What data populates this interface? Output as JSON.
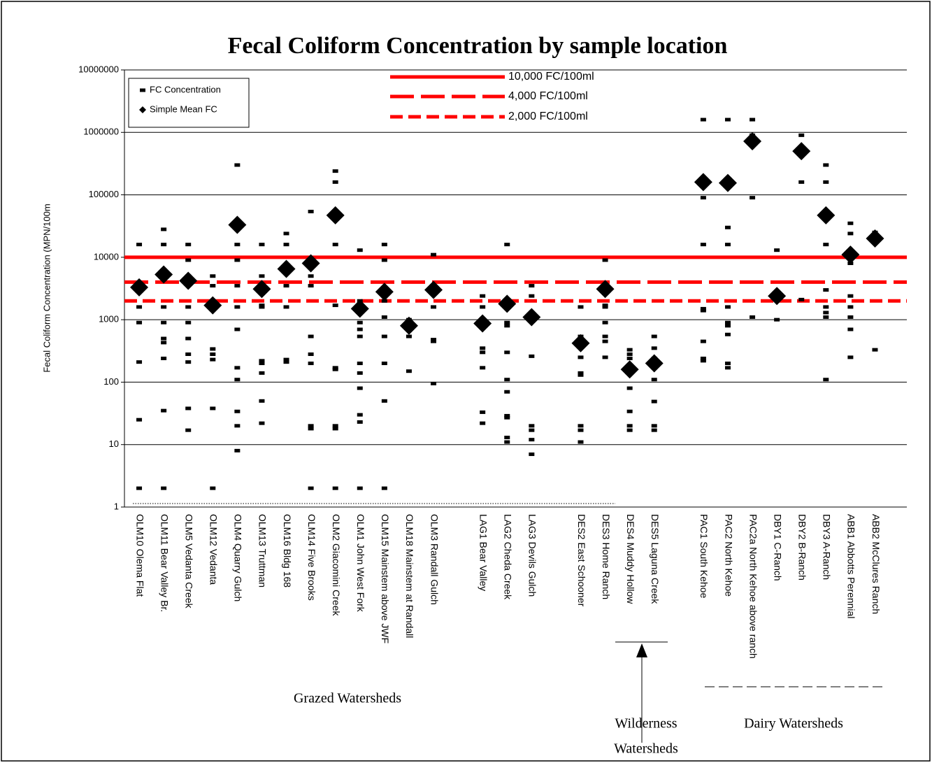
{
  "chart_data": {
    "type": "scatter",
    "title": "Fecal Coliform Concentration by sample location",
    "y_label": "Fecal Coliform Concentration (MPN/100m",
    "log_scale": true,
    "ylim": [
      1,
      10000000
    ],
    "yticks": [
      1,
      10,
      100,
      1000,
      10000,
      100000,
      1000000,
      10000000
    ],
    "grid": true,
    "categories": [
      "OLM10 Olema Flat",
      "OLM11 Bear Valley Br.",
      "OLM5 Vedanta Creek",
      "OLM12 Vedanta",
      "OLM4 Quarry Gulch",
      "OLM13 Truttman",
      "OLM16 Bldg 168",
      "OLM14 Five Brooks",
      "OLM2 Giacomini Creek",
      "OLM1 John West Fork",
      "OLM15 Mainstem above JWF",
      "OLM18 Mainstem at Randall",
      "OLM3 Randall Gulch",
      null,
      "LAG1 Bear Valley",
      "LAG2 Cheda Creek",
      "LAG3 Devils Gulch",
      null,
      "DES2 East Schooner",
      "DES3 Home Ranch",
      "DES4 Muddy Hollow",
      "DES5 Laguna Creek",
      null,
      "PAC1 South Kehoe",
      "PAC2 North Kehoe",
      "PAC2a North Kehoe above ranch",
      "DBY1 C-Ranch",
      "DBY2 B-Ranch",
      "DBY3 A-Ranch",
      "ABB1 Abbotts Perennial",
      "ABB2 McClures Ranch"
    ],
    "series": [
      {
        "name": "FC Concentration",
        "color": "#000000",
        "marker": "dash",
        "values": [
          [
            16000,
            1600,
            900,
            210,
            25,
            2
          ],
          [
            28000,
            16000,
            1600,
            900,
            500,
            430,
            240,
            35,
            2
          ],
          [
            16000,
            9000,
            5000,
            1600,
            900,
            500,
            280,
            210,
            38,
            17
          ],
          [
            5000,
            3500,
            340,
            280,
            230,
            38,
            2
          ],
          [
            300000,
            16000,
            9000,
            3500,
            1600,
            700,
            170,
            110,
            34,
            20,
            8
          ],
          [
            16000,
            5000,
            1700,
            1600,
            220,
            200,
            140,
            50,
            22
          ],
          [
            24000,
            16000,
            3500,
            1600,
            230,
            210
          ],
          [
            54000,
            5000,
            3500,
            540,
            280,
            200,
            20,
            18,
            2
          ],
          [
            240000,
            160000,
            16000,
            1700,
            170,
            160,
            20,
            18,
            2
          ],
          [
            13000,
            2000,
            900,
            700,
            540,
            200,
            140,
            80,
            30,
            23,
            2
          ],
          [
            16000,
            9000,
            2000,
            1100,
            540,
            200,
            50,
            2
          ],
          [
            1000,
            540,
            150
          ],
          [
            11000,
            1600,
            480,
            450,
            95
          ],
          null,
          [
            2400,
            1600,
            350,
            300,
            170,
            33,
            22
          ],
          [
            16000,
            900,
            800,
            300,
            110,
            70,
            29,
            27,
            13,
            11
          ],
          [
            3500,
            2400,
            260,
            20,
            17,
            12,
            7
          ],
          null,
          [
            1600,
            540,
            250,
            140,
            130,
            20,
            17,
            11
          ],
          [
            9000,
            1700,
            1600,
            900,
            540,
            450,
            250
          ],
          [
            330,
            280,
            240,
            80,
            34,
            20,
            17
          ],
          [
            540,
            350,
            240,
            170,
            110,
            49,
            20,
            17
          ],
          null,
          [
            1600000,
            90000,
            16000,
            1500,
            1400,
            450,
            240,
            220
          ],
          [
            1600000,
            30000,
            16000,
            1600,
            900,
            800,
            580,
            200,
            170
          ],
          [
            1600000,
            900000,
            90000,
            1100
          ],
          [
            13000,
            1000
          ],
          [
            900000,
            160000,
            2100
          ],
          [
            300000,
            160000,
            16000,
            3000,
            1600,
            1300,
            1100,
            110
          ],
          [
            35000,
            24000,
            8000,
            2400,
            1600,
            1100,
            700,
            250
          ],
          [
            25000,
            17000,
            330
          ]
        ]
      },
      {
        "name": "Simple Mean FC",
        "color": "#000000",
        "marker": "diamond",
        "values": [
          3300,
          5300,
          4200,
          1700,
          33000,
          3100,
          6500,
          8000,
          47000,
          1500,
          2800,
          800,
          3000,
          null,
          870,
          1800,
          1100,
          null,
          420,
          3100,
          160,
          200,
          null,
          160000,
          155000,
          720000,
          2400,
          500000,
          47000,
          11000,
          20000
        ]
      }
    ],
    "reference_lines": [
      {
        "name": "10,000 FC/100ml",
        "value": 10000,
        "color": "#ff0000",
        "dash": "solid"
      },
      {
        "name": "4,000 FC/100ml",
        "value": 4000,
        "color": "#ff0000",
        "dash": "long"
      },
      {
        "name": "2,000 FC/100ml",
        "value": 2000,
        "color": "#ff0000",
        "dash": "short"
      }
    ],
    "annotations": [
      "Grazed Watersheds",
      "Wilderness",
      "Watersheds",
      "Dairy  Watersheds"
    ]
  }
}
